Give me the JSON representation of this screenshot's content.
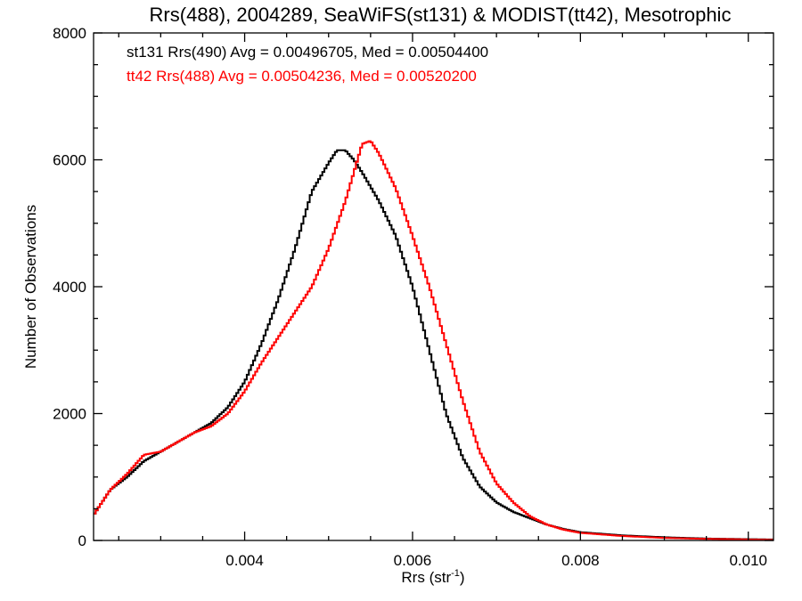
{
  "chart_data": {
    "type": "line",
    "step": true,
    "title": "Rrs(488), 2004289, SeaWiFS(st131) & MODIST(tt42), Mesotrophic",
    "xlabel": "Rrs (str",
    "xlabel_sup": "-1",
    "xlabel_close": ")",
    "ylabel": "Number of Observations",
    "xlim": [
      0.0022,
      0.0103
    ],
    "ylim": [
      0,
      8000
    ],
    "x_ticks": [
      0.004,
      0.006,
      0.008,
      0.01
    ],
    "x_tick_labels": [
      "0.004",
      "0.006",
      "0.008",
      "0.010"
    ],
    "y_ticks": [
      0,
      2000,
      4000,
      6000,
      8000
    ],
    "y_tick_labels": [
      "0",
      "2000",
      "4000",
      "6000",
      "8000"
    ],
    "annotations": [
      {
        "text": "st131 Rrs(490) Avg = 0.00496705, Med = 0.00504400",
        "color": "#000000"
      },
      {
        "text": "tt42 Rrs(488) Avg = 0.00504236, Med = 0.00520200",
        "color": "#ff0000"
      }
    ],
    "series": [
      {
        "color": "#000000",
        "x": [
          0.0022,
          0.0024,
          0.0026,
          0.0028,
          0.003,
          0.0032,
          0.0034,
          0.0036,
          0.0038,
          0.004,
          0.0042,
          0.0044,
          0.0046,
          0.0048,
          0.005,
          0.0051,
          0.0052,
          0.0053,
          0.0054,
          0.0056,
          0.0058,
          0.006,
          0.0062,
          0.0064,
          0.0066,
          0.0068,
          0.007,
          0.0072,
          0.0074,
          0.0076,
          0.0078,
          0.008,
          0.0085,
          0.009,
          0.0095,
          0.01,
          0.0103
        ],
        "y": [
          400,
          800,
          1000,
          1250,
          1400,
          1550,
          1700,
          1850,
          2100,
          2500,
          3100,
          3800,
          4600,
          5500,
          5950,
          6150,
          6150,
          6000,
          5800,
          5350,
          4800,
          4000,
          3000,
          2000,
          1300,
          850,
          600,
          450,
          350,
          250,
          180,
          130,
          80,
          50,
          30,
          20,
          15
        ]
      },
      {
        "color": "#ff0000",
        "x": [
          0.0022,
          0.0024,
          0.0026,
          0.0028,
          0.003,
          0.0032,
          0.0034,
          0.0036,
          0.0038,
          0.004,
          0.0042,
          0.0044,
          0.0046,
          0.0048,
          0.005,
          0.0052,
          0.0053,
          0.0054,
          0.0055,
          0.0056,
          0.0058,
          0.006,
          0.0062,
          0.0064,
          0.0066,
          0.0068,
          0.007,
          0.0072,
          0.0074,
          0.0076,
          0.0078,
          0.008,
          0.0085,
          0.009,
          0.0095,
          0.01,
          0.0103
        ],
        "y": [
          400,
          800,
          1050,
          1350,
          1400,
          1550,
          1700,
          1800,
          2000,
          2350,
          2800,
          3200,
          3600,
          4000,
          4600,
          5350,
          5800,
          6250,
          6300,
          6100,
          5550,
          4800,
          4000,
          3100,
          2200,
          1400,
          900,
          600,
          380,
          250,
          170,
          120,
          70,
          40,
          25,
          15,
          10
        ]
      }
    ]
  }
}
